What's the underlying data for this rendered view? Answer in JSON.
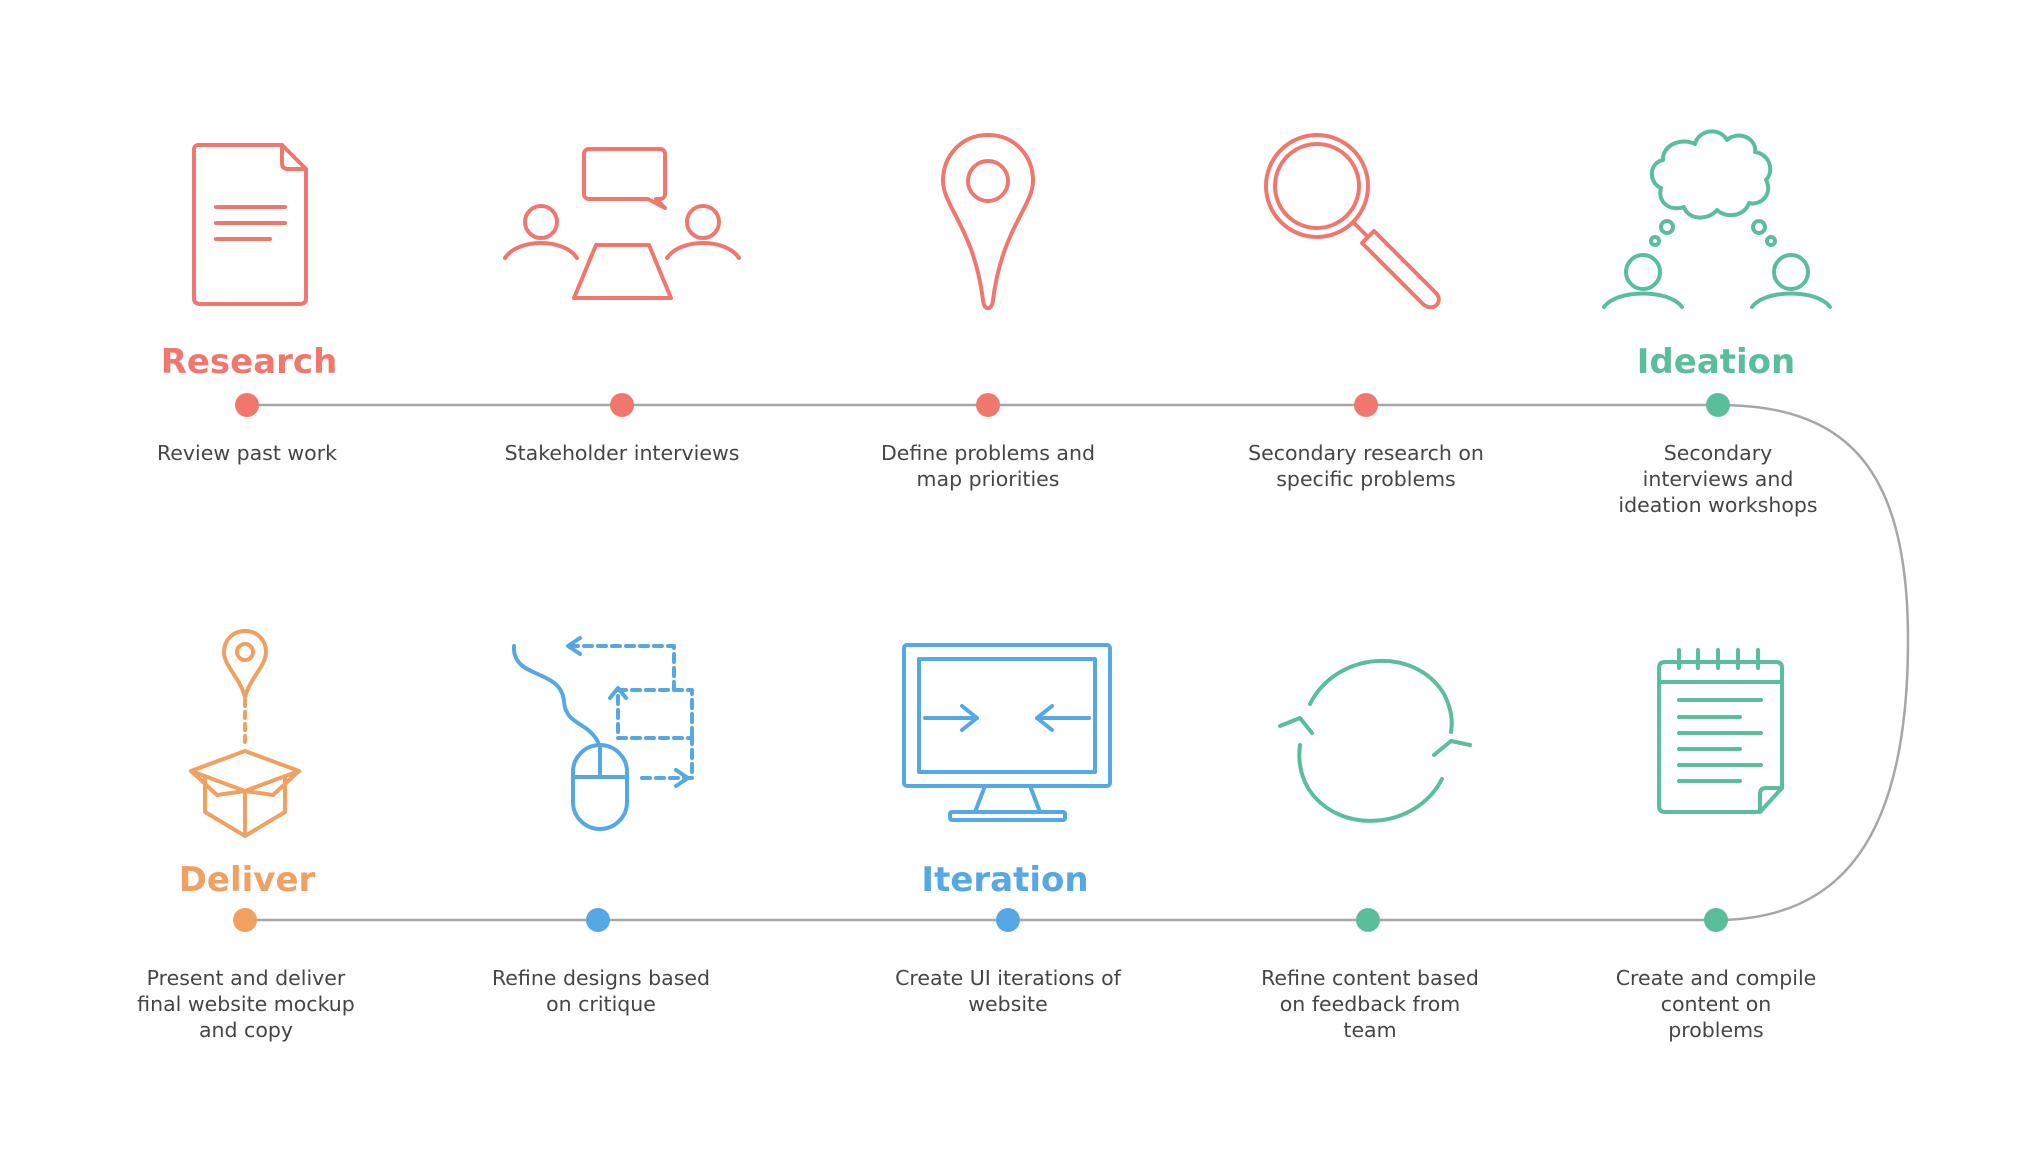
{
  "colors": {
    "research": "#F0776E",
    "ideation": "#5BBE9A",
    "iteration": "#55A8E3",
    "deliver": "#F0A060",
    "line": "#A6A6A6",
    "text": "#454545"
  },
  "phases": {
    "research": "Research",
    "ideation": "Ideation",
    "iteration": "Iteration",
    "deliver": "Deliver"
  },
  "steps": [
    {
      "text": "Review past work",
      "icon": "document-icon",
      "phase": "research"
    },
    {
      "text": "Stakeholder interviews",
      "icon": "meeting-icon",
      "phase": "research"
    },
    {
      "text": "Define problems and map priorities",
      "icon": "map-pin-icon",
      "phase": "research"
    },
    {
      "text": "Secondary research on specific problems",
      "icon": "magnifier-icon",
      "phase": "research"
    },
    {
      "text": "Secondary interviews and ideation workshops",
      "icon": "thought-cloud-icon",
      "phase": "ideation"
    },
    {
      "text": "Create and compile content on problems",
      "icon": "notepad-icon",
      "phase": "ideation"
    },
    {
      "text": "Refine content based on feedback from team",
      "icon": "refresh-icon",
      "phase": "ideation"
    },
    {
      "text": "Create UI iterations of website",
      "icon": "monitor-icon",
      "phase": "iteration"
    },
    {
      "text": "Refine designs based on critique",
      "icon": "mouse-flow-icon",
      "phase": "iteration"
    },
    {
      "text": "Present and deliver final website mockup and copy",
      "icon": "box-pin-icon",
      "phase": "deliver"
    }
  ]
}
